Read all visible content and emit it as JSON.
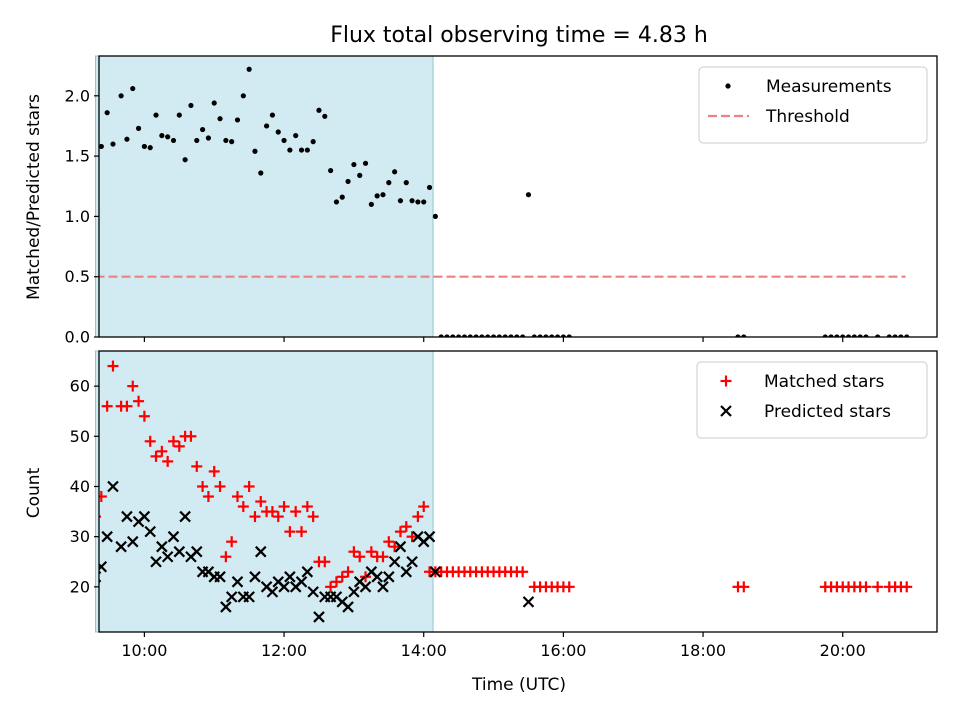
{
  "chart_data": [
    {
      "type": "scatter",
      "title": "Flux total observing time = 4.83 h",
      "xlabel": "",
      "ylabel": "Matched/Predicted stars",
      "xlim": [
        "09:21",
        "21:21"
      ],
      "ylim": [
        0,
        2.33
      ],
      "y_ticks": [
        "0.0",
        "0.5",
        "1.0",
        "1.5",
        "2.0"
      ],
      "shaded_region": {
        "x": [
          "09:18",
          "14:08"
        ],
        "color": "#add8e6"
      },
      "legend": {
        "placement": "upper right",
        "entries": [
          "Measurements",
          "Threshold"
        ]
      },
      "series": [
        {
          "name": "Measurements",
          "color": "#000000",
          "marker": "dot",
          "x": [
            "09:18",
            "09:23",
            "09:28",
            "09:33",
            "09:40",
            "09:45",
            "09:50",
            "09:55",
            "10:00",
            "10:05",
            "10:10",
            "10:15",
            "10:20",
            "10:25",
            "10:30",
            "10:35",
            "10:40",
            "10:45",
            "10:50",
            "10:55",
            "11:00",
            "11:05",
            "11:10",
            "11:15",
            "11:20",
            "11:25",
            "11:30",
            "11:35",
            "11:40",
            "11:45",
            "11:50",
            "11:55",
            "12:00",
            "12:05",
            "12:10",
            "12:15",
            "12:20",
            "12:25",
            "12:30",
            "12:35",
            "12:40",
            "12:45",
            "12:50",
            "12:55",
            "13:00",
            "13:05",
            "13:10",
            "13:15",
            "13:20",
            "13:25",
            "13:30",
            "13:35",
            "13:40",
            "13:45",
            "13:50",
            "13:55",
            "14:00",
            "14:05",
            "14:10",
            "15:30"
          ],
          "y": [
            1.54,
            1.58,
            1.86,
            1.6,
            2.0,
            1.64,
            2.06,
            1.73,
            1.58,
            1.57,
            1.84,
            1.67,
            1.66,
            1.63,
            1.84,
            1.47,
            1.92,
            1.63,
            1.72,
            1.65,
            1.94,
            1.81,
            1.63,
            1.62,
            1.8,
            2.0,
            2.22,
            1.54,
            1.36,
            1.75,
            1.84,
            1.7,
            1.63,
            1.55,
            1.67,
            1.55,
            1.55,
            1.62,
            1.88,
            1.83,
            1.38,
            1.12,
            1.16,
            1.29,
            1.43,
            1.34,
            1.44,
            1.1,
            1.17,
            1.18,
            1.28,
            1.37,
            1.13,
            1.28,
            1.13,
            1.12,
            1.12,
            1.24,
            1.0,
            1.18
          ]
        },
        {
          "name": "",
          "color": "#000000",
          "marker": "dot",
          "x": [
            "14:15",
            "14:20",
            "14:25",
            "14:30",
            "14:35",
            "14:40",
            "14:45",
            "14:50",
            "14:55",
            "15:00",
            "15:05",
            "15:10",
            "15:15",
            "15:20",
            "15:25",
            "15:35",
            "15:40",
            "15:45",
            "15:50",
            "15:55",
            "16:00",
            "16:05",
            "18:30",
            "18:35",
            "19:45",
            "19:50",
            "19:55",
            "20:00",
            "20:05",
            "20:10",
            "20:15",
            "20:20",
            "20:30",
            "20:40",
            "20:45",
            "20:50",
            "20:55"
          ],
          "y": [
            0,
            0,
            0,
            0,
            0,
            0,
            0,
            0,
            0,
            0,
            0,
            0,
            0,
            0,
            0,
            0,
            0,
            0,
            0,
            0,
            0,
            0,
            0,
            0,
            0,
            0,
            0,
            0,
            0,
            0,
            0,
            0,
            0,
            0,
            0,
            0,
            0
          ]
        },
        {
          "name": "Threshold",
          "color": "#f08080",
          "style": "dashed",
          "x": [
            "09:18",
            "20:54"
          ],
          "y": [
            0.5,
            0.5
          ]
        }
      ]
    },
    {
      "type": "scatter",
      "title": "",
      "xlabel": "Time (UTC)",
      "ylabel": "Count",
      "xlim": [
        "09:21",
        "21:21"
      ],
      "ylim": [
        11,
        67
      ],
      "x_ticks": [
        "10:00",
        "12:00",
        "14:00",
        "16:00",
        "18:00",
        "20:00"
      ],
      "y_ticks": [
        "20",
        "30",
        "40",
        "50",
        "60"
      ],
      "shaded_region": {
        "x": [
          "09:18",
          "14:08"
        ],
        "color": "#add8e6"
      },
      "legend": {
        "placement": "upper right",
        "entries": [
          "Matched stars",
          "Predicted stars"
        ]
      },
      "series": [
        {
          "name": "Matched stars",
          "color": "#ff0000",
          "marker": "plus",
          "x": [
            "09:18",
            "09:23",
            "09:28",
            "09:33",
            "09:40",
            "09:45",
            "09:50",
            "09:55",
            "10:00",
            "10:05",
            "10:10",
            "10:15",
            "10:20",
            "10:25",
            "10:30",
            "10:35",
            "10:40",
            "10:45",
            "10:50",
            "10:55",
            "11:00",
            "11:05",
            "11:10",
            "11:15",
            "11:20",
            "11:25",
            "11:30",
            "11:35",
            "11:40",
            "11:45",
            "11:50",
            "11:55",
            "12:00",
            "12:05",
            "12:10",
            "12:15",
            "12:20",
            "12:25",
            "12:30",
            "12:35",
            "12:40",
            "12:45",
            "12:50",
            "12:55",
            "13:00",
            "13:05",
            "13:10",
            "13:15",
            "13:20",
            "13:25",
            "13:30",
            "13:35",
            "13:40",
            "13:45",
            "13:50",
            "13:55",
            "14:00",
            "14:05",
            "14:10",
            "14:15",
            "14:20",
            "14:25",
            "14:30",
            "14:35",
            "14:40",
            "14:45",
            "14:50",
            "14:55",
            "15:00",
            "15:05",
            "15:10",
            "15:15",
            "15:20",
            "15:25",
            "15:35",
            "15:40",
            "15:45",
            "15:50",
            "15:55",
            "16:00",
            "16:05",
            "18:30",
            "18:35",
            "19:45",
            "19:50",
            "19:55",
            "20:00",
            "20:05",
            "20:10",
            "20:15",
            "20:20",
            "20:30",
            "20:40",
            "20:45",
            "20:50",
            "20:55"
          ],
          "y": [
            34,
            38,
            56,
            64,
            56,
            56,
            60,
            57,
            54,
            49,
            46,
            47,
            45,
            49,
            48,
            50,
            50,
            44,
            40,
            38,
            43,
            40,
            26,
            29,
            38,
            36,
            40,
            34,
            37,
            35,
            35,
            34,
            36,
            31,
            35,
            31,
            36,
            34,
            25,
            25,
            20,
            21,
            22,
            23,
            27,
            26,
            22,
            27,
            26,
            26,
            29,
            28,
            31,
            32,
            30,
            34,
            36,
            23,
            23,
            23,
            23,
            23,
            23,
            23,
            23,
            23,
            23,
            23,
            23,
            23,
            23,
            23,
            23,
            23,
            20,
            20,
            20,
            20,
            20,
            20,
            20,
            20,
            20,
            20,
            20,
            20,
            20,
            20,
            20,
            20,
            20,
            20,
            20,
            20,
            20,
            20
          ]
        },
        {
          "name": "Predicted stars",
          "color": "#000000",
          "marker": "x",
          "x": [
            "09:18",
            "09:23",
            "09:28",
            "09:33",
            "09:40",
            "09:45",
            "09:50",
            "09:55",
            "10:00",
            "10:05",
            "10:10",
            "10:15",
            "10:20",
            "10:25",
            "10:30",
            "10:35",
            "10:40",
            "10:45",
            "10:50",
            "10:55",
            "11:00",
            "11:05",
            "11:10",
            "11:15",
            "11:20",
            "11:25",
            "11:30",
            "11:35",
            "11:40",
            "11:45",
            "11:50",
            "11:55",
            "12:00",
            "12:05",
            "12:10",
            "12:15",
            "12:20",
            "12:25",
            "12:30",
            "12:35",
            "12:40",
            "12:45",
            "12:50",
            "12:55",
            "13:00",
            "13:05",
            "13:10",
            "13:15",
            "13:20",
            "13:25",
            "13:30",
            "13:35",
            "13:40",
            "13:45",
            "13:50",
            "13:55",
            "14:00",
            "14:05",
            "14:10",
            "15:30"
          ],
          "y": [
            22,
            24,
            30,
            40,
            28,
            34,
            29,
            33,
            34,
            31,
            25,
            28,
            26,
            30,
            27,
            34,
            26,
            27,
            23,
            23,
            22,
            22,
            16,
            18,
            21,
            18,
            18,
            22,
            27,
            20,
            19,
            21,
            20,
            22,
            20,
            21,
            23,
            19,
            14,
            18,
            18,
            18,
            17,
            16,
            19,
            21,
            20,
            23,
            22,
            20,
            22,
            25,
            28,
            23,
            25,
            30,
            29,
            30,
            23,
            17
          ]
        }
      ]
    }
  ]
}
